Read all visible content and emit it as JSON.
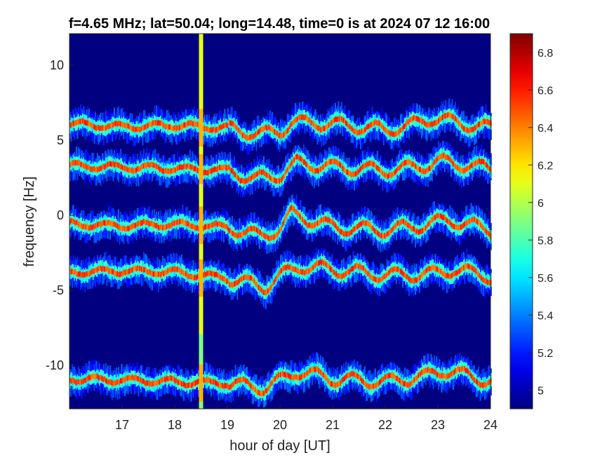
{
  "chart_data": {
    "type": "heatmap",
    "title": "f=4.65 MHz;  lat=50.04; long=14.48, time=0 is at 2024 07 12 16:00",
    "xlabel": "hour of day [UT]",
    "ylabel": "frequency [Hz]",
    "xlim": [
      16,
      24
    ],
    "ylim": [
      -12.9,
      12.1
    ],
    "xticks": [
      "17",
      "18",
      "19",
      "20",
      "21",
      "22",
      "23",
      "24"
    ],
    "xtick_values": [
      17,
      18,
      19,
      20,
      21,
      22,
      23,
      24
    ],
    "yticks": [
      "-10",
      "-5",
      "0",
      "5",
      "10"
    ],
    "ytick_values": [
      -10,
      -5,
      0,
      5,
      10
    ],
    "colormap": "jet",
    "clim": [
      4.9,
      6.9
    ],
    "colorbar_ticks": [
      "5",
      "5.2",
      "5.4",
      "5.6",
      "5.8",
      "6",
      "6.2",
      "6.4",
      "6.6",
      "6.8"
    ],
    "colorbar_values": [
      5,
      5.2,
      5.4,
      5.6,
      5.8,
      6,
      6.2,
      6.4,
      6.6,
      6.8
    ],
    "background_value": 4.95,
    "saturated_column_hour": 18.5,
    "traces": [
      {
        "base_hz": 6.0,
        "start_hour": 16.0,
        "points": [
          [
            16.0,
            6.1
          ],
          [
            17.0,
            5.9
          ],
          [
            18.0,
            6.0
          ],
          [
            19.0,
            5.8
          ],
          [
            19.6,
            5.4
          ],
          [
            20.0,
            5.6
          ],
          [
            20.2,
            6.2
          ],
          [
            21.0,
            6.1
          ],
          [
            22.0,
            5.7
          ],
          [
            22.4,
            5.9
          ],
          [
            22.9,
            6.5
          ],
          [
            23.3,
            6.2
          ],
          [
            24.0,
            5.8
          ]
        ]
      },
      {
        "base_hz": 3.2,
        "start_hour": 16.0,
        "points": [
          [
            16.0,
            3.3
          ],
          [
            17.0,
            3.2
          ],
          [
            18.0,
            3.1
          ],
          [
            19.0,
            3.0
          ],
          [
            19.5,
            2.4
          ],
          [
            20.0,
            2.7
          ],
          [
            20.3,
            3.5
          ],
          [
            21.0,
            3.2
          ],
          [
            22.0,
            3.0
          ],
          [
            22.6,
            3.2
          ],
          [
            23.0,
            3.6
          ],
          [
            24.0,
            3.1
          ]
        ]
      },
      {
        "base_hz": -0.6,
        "start_hour": 16.0,
        "points": [
          [
            16.0,
            -0.6
          ],
          [
            17.0,
            -0.7
          ],
          [
            18.0,
            -0.6
          ],
          [
            19.0,
            -0.8
          ],
          [
            19.6,
            -1.4
          ],
          [
            20.0,
            -0.9
          ],
          [
            20.2,
            0.1
          ],
          [
            21.0,
            -0.8
          ],
          [
            22.0,
            -1.0
          ],
          [
            22.8,
            -0.6
          ],
          [
            23.2,
            -0.3
          ],
          [
            24.0,
            -1.0
          ]
        ]
      },
      {
        "base_hz": -3.8,
        "start_hour": 16.0,
        "points": [
          [
            16.0,
            -3.8
          ],
          [
            17.0,
            -3.7
          ],
          [
            18.0,
            -3.8
          ],
          [
            19.0,
            -4.2
          ],
          [
            19.7,
            -4.8
          ],
          [
            20.0,
            -4.0
          ],
          [
            20.4,
            -3.4
          ],
          [
            21.0,
            -3.6
          ],
          [
            22.0,
            -4.0
          ],
          [
            22.9,
            -3.9
          ],
          [
            23.3,
            -3.6
          ],
          [
            24.0,
            -4.1
          ]
        ]
      },
      {
        "base_hz": -10.9,
        "start_hour": 16.0,
        "points": [
          [
            16.0,
            -10.9
          ],
          [
            17.0,
            -11.0
          ],
          [
            18.0,
            -11.1
          ],
          [
            19.0,
            -11.2
          ],
          [
            19.7,
            -11.5
          ],
          [
            20.0,
            -11.0
          ],
          [
            20.3,
            -10.4
          ],
          [
            21.0,
            -10.9
          ],
          [
            22.0,
            -11.1
          ],
          [
            22.8,
            -10.7
          ],
          [
            23.1,
            -10.3
          ],
          [
            24.0,
            -11.1
          ]
        ]
      }
    ]
  }
}
